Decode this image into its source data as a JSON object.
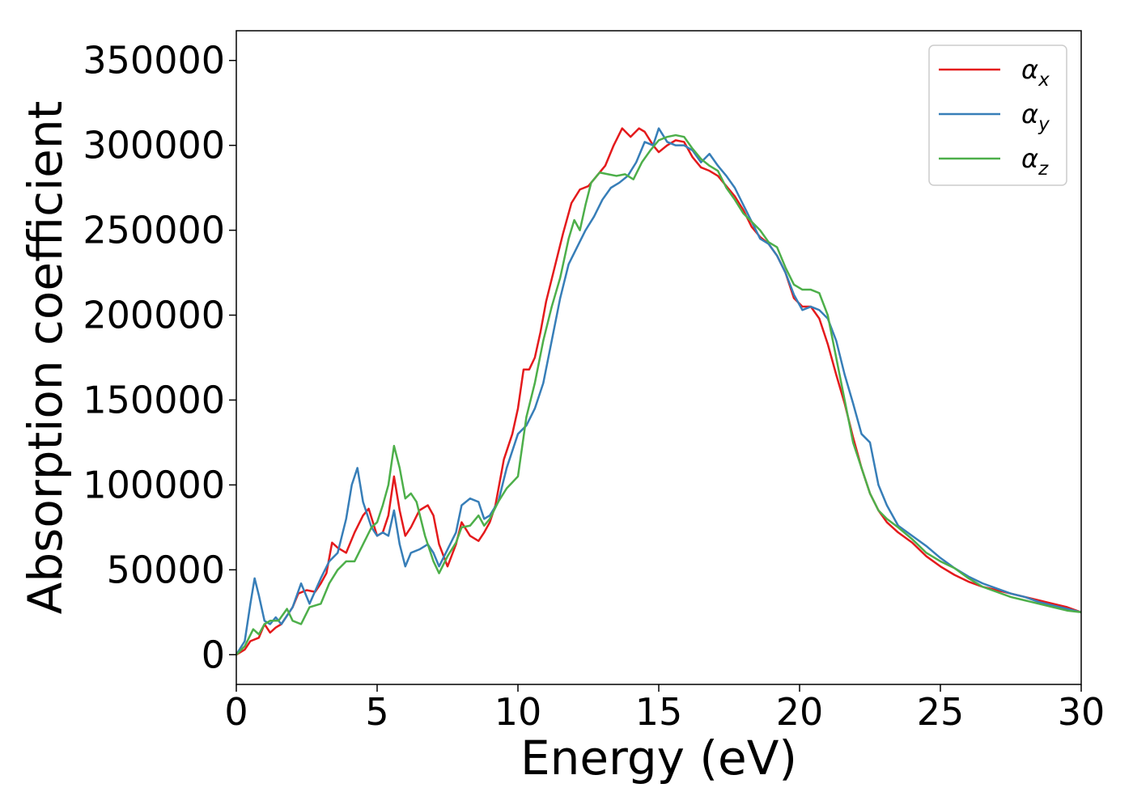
{
  "chart_data": {
    "type": "line",
    "title": "",
    "xlabel": "Energy (eV)",
    "ylabel": "Absorption coefficient",
    "xlim": [
      0,
      30
    ],
    "ylim": [
      -17500,
      367500
    ],
    "xticks": [
      0,
      5,
      10,
      15,
      20,
      25,
      30
    ],
    "xtick_labels": [
      "0",
      "5",
      "10",
      "15",
      "20",
      "25",
      "30"
    ],
    "yticks": [
      0,
      50000,
      100000,
      150000,
      200000,
      250000,
      300000,
      350000
    ],
    "ytick_labels": [
      "0",
      "50000",
      "100000",
      "150000",
      "200000",
      "250000",
      "300000",
      "350000"
    ],
    "grid": false,
    "legend_position": "top-right",
    "series": [
      {
        "name": "α",
        "subscript": "x",
        "color": "#e41a1c",
        "x": [
          0,
          0.3,
          0.5,
          0.8,
          1.0,
          1.2,
          1.4,
          1.6,
          2.0,
          2.2,
          2.5,
          2.8,
          3.0,
          3.2,
          3.4,
          3.6,
          3.9,
          4.2,
          4.5,
          4.7,
          5.0,
          5.2,
          5.4,
          5.6,
          5.8,
          6.0,
          6.2,
          6.5,
          6.8,
          7.0,
          7.2,
          7.5,
          7.8,
          8.0,
          8.3,
          8.6,
          8.8,
          9.0,
          9.2,
          9.5,
          9.8,
          10.0,
          10.2,
          10.4,
          10.6,
          10.8,
          11.0,
          11.3,
          11.6,
          11.9,
          12.2,
          12.5,
          12.8,
          13.1,
          13.4,
          13.7,
          14.0,
          14.3,
          14.5,
          14.8,
          15.0,
          15.3,
          15.6,
          15.9,
          16.2,
          16.5,
          16.8,
          17.1,
          17.4,
          17.7,
          18.0,
          18.3,
          18.6,
          18.9,
          19.2,
          19.5,
          19.8,
          20.1,
          20.4,
          20.7,
          21.0,
          21.3,
          21.6,
          21.9,
          22.2,
          22.5,
          22.8,
          23.1,
          23.5,
          24.0,
          24.5,
          25.0,
          25.5,
          26.0,
          26.5,
          27.0,
          27.5,
          28.0,
          28.5,
          29.0,
          29.5,
          30.0
        ],
        "y": [
          0,
          3000,
          8000,
          10000,
          18000,
          13000,
          16000,
          18000,
          28000,
          36000,
          38000,
          37000,
          42000,
          48000,
          66000,
          63000,
          60000,
          72000,
          82000,
          86000,
          70000,
          72000,
          82000,
          105000,
          85000,
          70000,
          75000,
          85000,
          88000,
          82000,
          65000,
          52000,
          65000,
          78000,
          70000,
          67000,
          72000,
          78000,
          88000,
          115000,
          130000,
          145000,
          168000,
          168000,
          175000,
          190000,
          208000,
          228000,
          248000,
          266000,
          274000,
          276000,
          282000,
          288000,
          300000,
          310000,
          305000,
          310000,
          308000,
          300000,
          296000,
          300000,
          303000,
          302000,
          293000,
          287000,
          285000,
          282000,
          276000,
          270000,
          262000,
          252000,
          246000,
          242000,
          235000,
          225000,
          210000,
          205000,
          205000,
          198000,
          183000,
          165000,
          148000,
          128000,
          110000,
          95000,
          85000,
          78000,
          72000,
          66000,
          58000,
          52000,
          47000,
          43000,
          40000,
          38000,
          36000,
          34000,
          32000,
          30000,
          28000,
          25000
        ]
      },
      {
        "name": "α",
        "subscript": "y",
        "color": "#377eb8",
        "x": [
          0,
          0.3,
          0.5,
          0.65,
          0.8,
          1.0,
          1.2,
          1.4,
          1.6,
          2.0,
          2.3,
          2.6,
          3.0,
          3.3,
          3.6,
          3.9,
          4.1,
          4.3,
          4.5,
          4.8,
          5.0,
          5.2,
          5.4,
          5.6,
          5.8,
          6.0,
          6.2,
          6.5,
          6.8,
          7.0,
          7.2,
          7.5,
          7.8,
          8.0,
          8.3,
          8.6,
          8.8,
          9.0,
          9.3,
          9.6,
          10.0,
          10.3,
          10.6,
          10.9,
          11.2,
          11.5,
          11.8,
          12.1,
          12.4,
          12.7,
          13.0,
          13.3,
          13.6,
          13.9,
          14.2,
          14.5,
          14.8,
          15.0,
          15.3,
          15.6,
          15.9,
          16.2,
          16.5,
          16.8,
          17.1,
          17.4,
          17.7,
          18.0,
          18.3,
          18.6,
          18.9,
          19.2,
          19.5,
          19.8,
          20.1,
          20.4,
          20.7,
          21.0,
          21.3,
          21.6,
          21.9,
          22.2,
          22.5,
          22.8,
          23.1,
          23.5,
          24.0,
          24.5,
          25.0,
          25.5,
          26.0,
          26.5,
          27.0,
          27.5,
          28.0,
          28.5,
          29.0,
          29.5,
          30.0
        ],
        "y": [
          0,
          8000,
          30000,
          45000,
          35000,
          20000,
          18000,
          22000,
          18000,
          28000,
          42000,
          30000,
          45000,
          55000,
          60000,
          80000,
          100000,
          110000,
          90000,
          75000,
          70000,
          72000,
          70000,
          85000,
          65000,
          52000,
          60000,
          62000,
          65000,
          60000,
          52000,
          62000,
          72000,
          88000,
          92000,
          90000,
          80000,
          82000,
          90000,
          110000,
          130000,
          135000,
          145000,
          160000,
          185000,
          210000,
          230000,
          240000,
          250000,
          258000,
          268000,
          275000,
          278000,
          282000,
          290000,
          302000,
          300000,
          310000,
          302000,
          300000,
          300000,
          297000,
          290000,
          295000,
          288000,
          282000,
          275000,
          265000,
          255000,
          245000,
          242000,
          235000,
          225000,
          212000,
          203000,
          205000,
          203000,
          198000,
          185000,
          165000,
          148000,
          130000,
          125000,
          100000,
          88000,
          76000,
          70000,
          64000,
          57000,
          51000,
          46000,
          42000,
          39000,
          36000,
          34000,
          31000,
          29000,
          27000,
          25000
        ]
      },
      {
        "name": "α",
        "subscript": "z",
        "color": "#4daf4a",
        "x": [
          0,
          0.3,
          0.6,
          0.8,
          1.0,
          1.2,
          1.5,
          1.8,
          2.0,
          2.3,
          2.6,
          3.0,
          3.3,
          3.6,
          3.9,
          4.2,
          4.5,
          4.8,
          5.0,
          5.2,
          5.4,
          5.6,
          5.8,
          6.0,
          6.2,
          6.4,
          6.7,
          7.0,
          7.2,
          7.5,
          7.8,
          8.0,
          8.3,
          8.6,
          8.8,
          9.0,
          9.3,
          9.6,
          10.0,
          10.3,
          10.6,
          10.9,
          11.2,
          11.5,
          11.8,
          12.0,
          12.2,
          12.4,
          12.6,
          12.9,
          13.2,
          13.5,
          13.8,
          14.1,
          14.4,
          14.7,
          15.0,
          15.3,
          15.6,
          15.9,
          16.2,
          16.5,
          16.8,
          17.1,
          17.4,
          17.7,
          18.0,
          18.3,
          18.6,
          18.9,
          19.2,
          19.5,
          19.8,
          20.1,
          20.4,
          20.7,
          21.0,
          21.3,
          21.6,
          21.9,
          22.2,
          22.5,
          22.8,
          23.1,
          23.5,
          24.0,
          24.5,
          25.0,
          25.5,
          26.0,
          26.5,
          27.0,
          27.5,
          28.0,
          28.5,
          29.0,
          29.5,
          30.0
        ],
        "y": [
          0,
          5000,
          15000,
          12000,
          18000,
          20000,
          20000,
          27000,
          20000,
          18000,
          28000,
          30000,
          42000,
          50000,
          55000,
          55000,
          65000,
          75000,
          78000,
          88000,
          100000,
          123000,
          110000,
          92000,
          95000,
          90000,
          70000,
          55000,
          48000,
          58000,
          66000,
          75000,
          76000,
          82000,
          76000,
          80000,
          90000,
          98000,
          105000,
          140000,
          160000,
          185000,
          205000,
          222000,
          245000,
          256000,
          250000,
          265000,
          278000,
          284000,
          283000,
          282000,
          283000,
          280000,
          290000,
          297000,
          303000,
          305000,
          306000,
          305000,
          298000,
          292000,
          288000,
          285000,
          275000,
          268000,
          260000,
          255000,
          250000,
          243000,
          240000,
          228000,
          218000,
          215000,
          215000,
          213000,
          200000,
          175000,
          150000,
          125000,
          110000,
          95000,
          85000,
          80000,
          75000,
          68000,
          60000,
          55000,
          51000,
          45000,
          40000,
          37000,
          34000,
          32000,
          30000,
          28000,
          26000,
          25000
        ]
      }
    ]
  }
}
